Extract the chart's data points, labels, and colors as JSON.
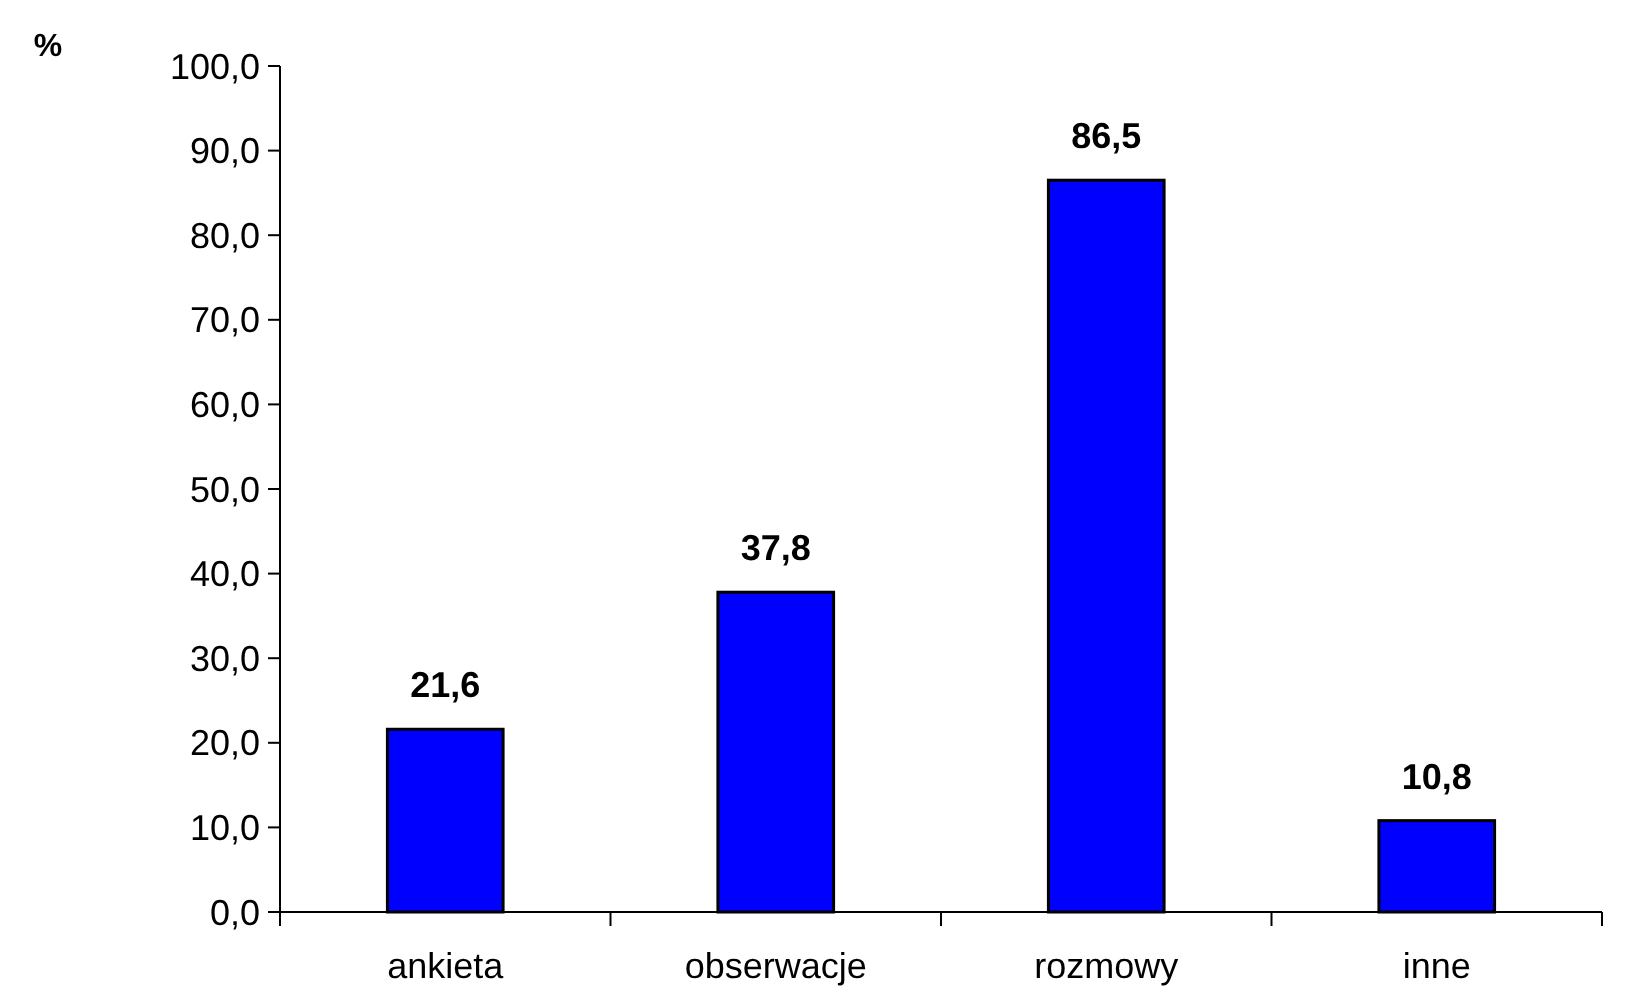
{
  "chart_data": {
    "type": "bar",
    "ylabel": "%",
    "categories": [
      "ankieta",
      "obserwacje",
      "rozmowy",
      "inne"
    ],
    "values": [
      21.6,
      37.8,
      86.5,
      10.8
    ],
    "color": "#0000ff",
    "value_labels": [
      "21,6",
      "37,8",
      "86,5",
      "10,8"
    ],
    "ylim": [
      0,
      100
    ],
    "yticks": [
      {
        "value": 0,
        "label": "0,0"
      },
      {
        "value": 10,
        "label": "10,0"
      },
      {
        "value": 20,
        "label": "20,0"
      },
      {
        "value": 30,
        "label": "30,0"
      },
      {
        "value": 40,
        "label": "40,0"
      },
      {
        "value": 50,
        "label": "50,0"
      },
      {
        "value": 60,
        "label": "60,0"
      },
      {
        "value": 70,
        "label": "70,0"
      },
      {
        "value": 80,
        "label": "80,0"
      },
      {
        "value": 90,
        "label": "90,0"
      },
      {
        "value": 100,
        "label": "100,0"
      }
    ],
    "grid": false
  }
}
